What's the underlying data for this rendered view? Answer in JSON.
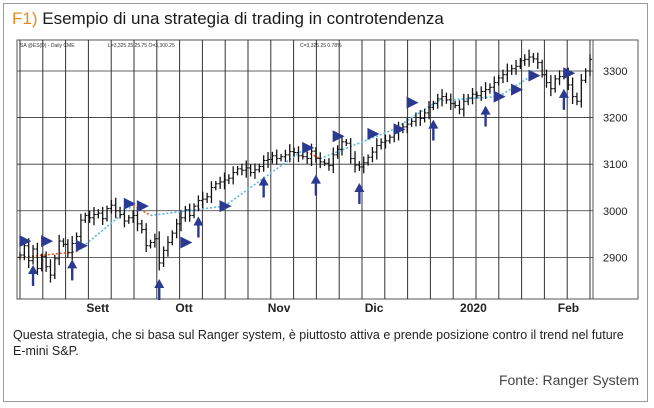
{
  "title": {
    "number": "F1)",
    "text": "Esempio di una strategia di trading in controtendenza"
  },
  "chart_header": {
    "symbol": "SA  @ES(D) - Daily  CME",
    "low_close": "L=3,325.25  25.75  O=3,300.25",
    "close_change": "C=3,325.25  0.78%"
  },
  "chart_data": {
    "type": "ohlc",
    "ylim": [
      2815,
      3345
    ],
    "y_ticks": [
      2900,
      3000,
      3100,
      3200,
      3300
    ],
    "x_tick_labels": [
      "Sett",
      "Ott",
      "Nov",
      "Dic",
      "2020",
      "Feb"
    ],
    "x_tick_positions": [
      18,
      38,
      60,
      82,
      105,
      127
    ],
    "closes": [
      2905,
      2925,
      2893,
      2918,
      2876,
      2902,
      2880,
      2862,
      2897,
      2935,
      2928,
      2910,
      2930,
      2945,
      2980,
      2990,
      2985,
      2992,
      2995,
      2983,
      3005,
      3012,
      3000,
      2992,
      2978,
      2985,
      2990,
      2972,
      2960,
      2925,
      2932,
      2940,
      2888,
      2915,
      2932,
      2952,
      2972,
      2985,
      3002,
      2990,
      3010,
      3022,
      3025,
      3030,
      3050,
      3058,
      3062,
      3066,
      3070,
      3082,
      3090,
      3087,
      3092,
      3082,
      3088,
      3095,
      3108,
      3110,
      3118,
      3112,
      3116,
      3120,
      3127,
      3125,
      3118,
      3116,
      3112,
      3128,
      3112,
      3105,
      3102,
      3097,
      3120,
      3132,
      3148,
      3145,
      3112,
      3098,
      3094,
      3103,
      3115,
      3126,
      3140,
      3147,
      3150,
      3158,
      3167,
      3175,
      3180,
      3186,
      3192,
      3200,
      3198,
      3210,
      3222,
      3230,
      3240,
      3245,
      3238,
      3230,
      3226,
      3218,
      3235,
      3242,
      3250,
      3247,
      3256,
      3260,
      3265,
      3275,
      3285,
      3292,
      3300,
      3305,
      3310,
      3322,
      3325,
      3330,
      3326,
      3318,
      3292,
      3275,
      3262,
      3283,
      3288,
      3296,
      3270,
      3245,
      3235,
      3280,
      3300,
      3325
    ],
    "buy_arrow_bars": [
      3,
      12,
      32,
      41,
      56,
      68,
      78,
      95,
      107,
      125
    ],
    "signal_markers": [
      {
        "bar": 1,
        "price": 2935
      },
      {
        "bar": 6,
        "price": 2935
      },
      {
        "bar": 14,
        "price": 2925
      },
      {
        "bar": 25,
        "price": 3015
      },
      {
        "bar": 28,
        "price": 3010
      },
      {
        "bar": 38,
        "price": 2932
      },
      {
        "bar": 47,
        "price": 3010
      },
      {
        "bar": 66,
        "price": 3135
      },
      {
        "bar": 73,
        "price": 3160
      },
      {
        "bar": 81,
        "price": 3165
      },
      {
        "bar": 87,
        "price": 3175
      },
      {
        "bar": 90,
        "price": 3232
      },
      {
        "bar": 110,
        "price": 3245
      },
      {
        "bar": 114,
        "price": 3260
      },
      {
        "bar": 118,
        "price": 3290
      },
      {
        "bar": 126,
        "price": 3295
      }
    ],
    "trend_segments": [
      {
        "from": [
          0,
          2900
        ],
        "to": [
          13,
          2912
        ],
        "color": "#e8541c"
      },
      {
        "from": [
          13,
          2912
        ],
        "to": [
          26,
          3012
        ],
        "color": "#5bb8e8"
      },
      {
        "from": [
          26,
          3012
        ],
        "to": [
          30,
          2990
        ],
        "color": "#e8541c"
      },
      {
        "from": [
          30,
          2990
        ],
        "to": [
          47,
          3010
        ],
        "color": "#5bb8e8"
      },
      {
        "from": [
          47,
          3010
        ],
        "to": [
          65,
          3130
        ],
        "color": "#5bb8e8"
      },
      {
        "from": [
          65,
          3130
        ],
        "to": [
          69,
          3112
        ],
        "color": "#e8541c"
      },
      {
        "from": [
          69,
          3112
        ],
        "to": [
          86,
          3175
        ],
        "color": "#5bb8e8"
      },
      {
        "from": [
          86,
          3175
        ],
        "to": [
          96,
          3236
        ],
        "color": "#5bb8e8"
      },
      {
        "from": [
          96,
          3236
        ],
        "to": [
          110,
          3245
        ],
        "color": "#5bb8e8"
      },
      {
        "from": [
          110,
          3245
        ],
        "to": [
          118,
          3292
        ],
        "color": "#5bb8e8"
      }
    ]
  },
  "caption": "Questa strategia, che si basa sul Ranger system, è piuttosto attiva e prende posizione contro il trend nel future E-mini S&P.",
  "source": "Fonte: Ranger System",
  "colors": {
    "title_number": "#e8891c",
    "arrow": "#2b3990",
    "bars": "#111111",
    "grid": "#444444"
  }
}
